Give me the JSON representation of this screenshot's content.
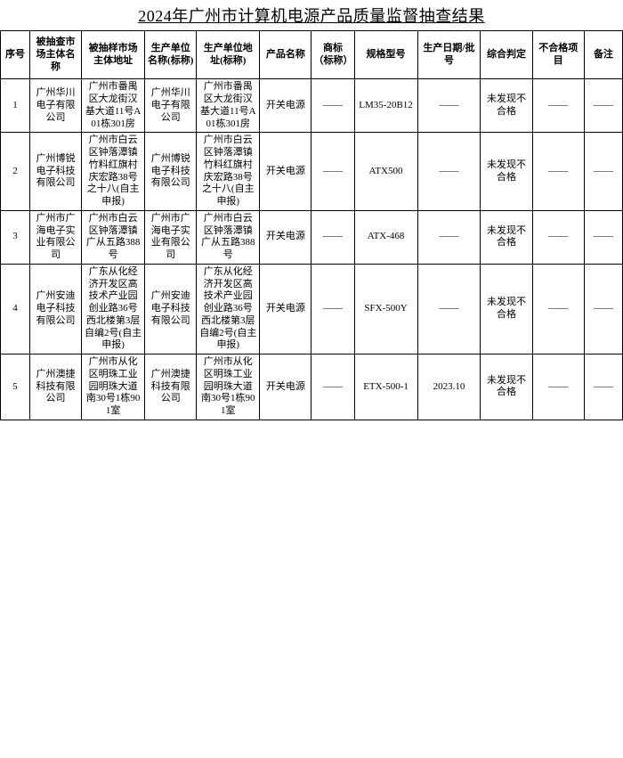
{
  "title": "2024年广州市计算机电源产品质量监督抽查结果",
  "headers": {
    "c1": "序号",
    "c2": "被抽查市场主体名称",
    "c3": "被抽样市场主体地址",
    "c4": "生产单位名称(标称)",
    "c5": "生产单位地址(标称)",
    "c6": "产品名称",
    "c7": "商标（标称）",
    "c8": "规格型号",
    "c9": "生产日期/批号",
    "c10": "综合判定",
    "c11": "不合格项目",
    "c12": "备注"
  },
  "rows": [
    {
      "c1": "1",
      "c2": "广州华川电子有限公司",
      "c3": "广州市番禺区大龙街汉基大道11号A01栋301房",
      "c4": "广州华川电子有限公司",
      "c5": "广州市番禺区大龙街汉基大道11号A01栋301房",
      "c6": "开关电源",
      "c7": "——",
      "c8": "LM35-20B12",
      "c9": "——",
      "c10": "未发现不合格",
      "c11": "——",
      "c12": "——"
    },
    {
      "c1": "2",
      "c2": "广州博锐电子科技有限公司",
      "c3": "广州市白云区钟落潭镇竹料红旗村庆宏路38号之十八(自主申报)",
      "c4": "广州博锐电子科技有限公司",
      "c5": "广州市白云区钟落潭镇竹料红旗村庆宏路38号之十八(自主申报)",
      "c6": "开关电源",
      "c7": "——",
      "c8": "ATX500",
      "c9": "——",
      "c10": "未发现不合格",
      "c11": "——",
      "c12": "——"
    },
    {
      "c1": "3",
      "c2": "广州市广海电子实业有限公司",
      "c3": "广州市白云区钟落潭镇广从五路388号",
      "c4": "广州市广海电子实业有限公司",
      "c5": "广州市白云区钟落潭镇广从五路388号",
      "c6": "开关电源",
      "c7": "——",
      "c8": "ATX-468",
      "c9": "——",
      "c10": "未发现不合格",
      "c11": "——",
      "c12": "——"
    },
    {
      "c1": "4",
      "c2": "广州安迪电子科技有限公司",
      "c3": "广东从化经济开发区高技术产业园创业路36号西北楼第3层自编2号(自主申报)",
      "c4": "广州安迪电子科技有限公司",
      "c5": "广东从化经济开发区高技术产业园创业路36号西北楼第3层自编2号(自主申报)",
      "c6": "开关电源",
      "c7": "——",
      "c8": "SFX-500Y",
      "c9": "——",
      "c10": "未发现不合格",
      "c11": "——",
      "c12": "——"
    },
    {
      "c1": "5",
      "c2": "广州澳捷科技有限公司",
      "c3": "广州市从化区明珠工业园明珠大道南30号1栋901室",
      "c4": "广州澳捷科技有限公司",
      "c5": "广州市从化区明珠工业园明珠大道南30号1栋901室",
      "c6": "开关电源",
      "c7": "——",
      "c8": "ETX-500-1",
      "c9": "2023.10",
      "c10": "未发现不合格",
      "c11": "——",
      "c12": "——"
    }
  ]
}
